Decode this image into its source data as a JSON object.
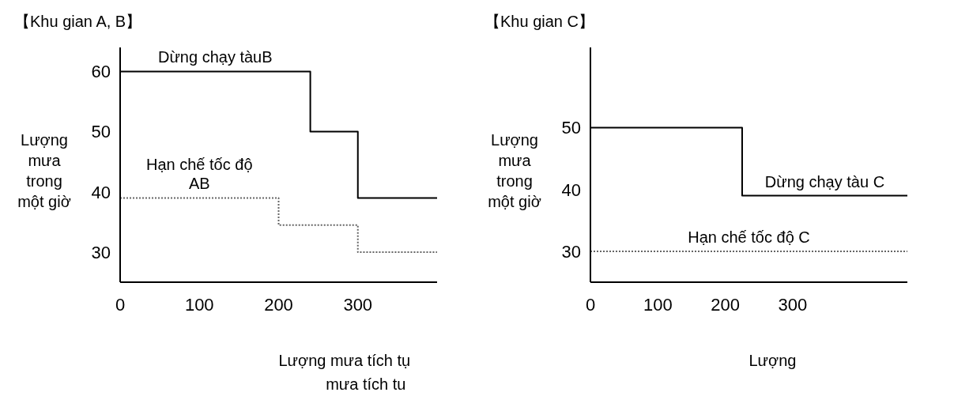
{
  "chart_data": [
    {
      "type": "step",
      "title": "【Khu gian A, B】",
      "xlabel": "Lượng mưa tích tụ mưa tích tu",
      "ylabel": "Lượng mưa trong một giờ",
      "xlim": [
        0,
        400
      ],
      "ylim": [
        25,
        64
      ],
      "xticks": [
        0,
        100,
        200,
        300
      ],
      "yticks": [
        30,
        40,
        50,
        60
      ],
      "series": [
        {
          "name": "Dừng chạy tàuB",
          "color": "#000000",
          "line_style": "solid",
          "x": [
            0,
            240,
            300,
            400
          ],
          "values": [
            60,
            50,
            39,
            39
          ]
        },
        {
          "name": "Hạn chế tốc độ AB",
          "color": "#666666",
          "line_style": "dotted",
          "x": [
            0,
            200,
            300,
            400
          ],
          "values": [
            39,
            34.5,
            30,
            30
          ]
        }
      ]
    },
    {
      "type": "step",
      "title": "【Khu gian C】",
      "xlabel": "Lượng",
      "ylabel": "Lượng mưa trong một giờ",
      "xlim": [
        0,
        470
      ],
      "ylim": [
        25,
        63
      ],
      "xticks": [
        0,
        100,
        200,
        300
      ],
      "yticks": [
        30,
        40,
        50
      ],
      "series": [
        {
          "name": "Dừng chạy tàu C",
          "color": "#000000",
          "line_style": "solid",
          "x": [
            0,
            225,
            470
          ],
          "values": [
            50,
            39,
            39
          ]
        },
        {
          "name": "Hạn chế tốc độ C",
          "color": "#666666",
          "line_style": "dotted",
          "x": [
            0,
            470
          ],
          "values": [
            30,
            30
          ]
        }
      ]
    }
  ]
}
